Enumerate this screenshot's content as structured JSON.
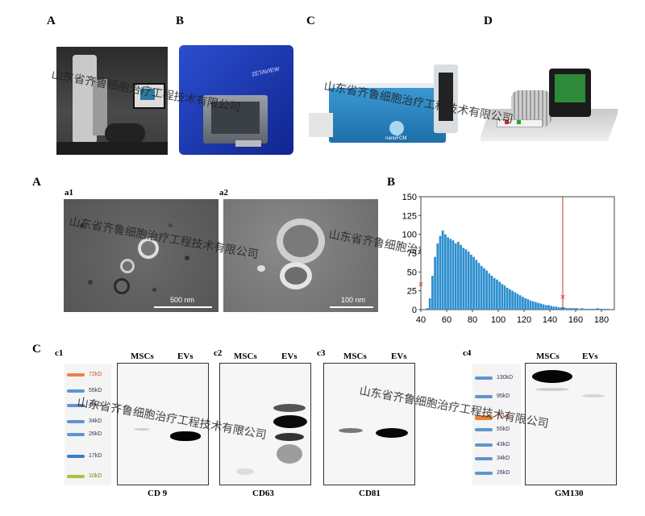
{
  "top_panels": {
    "A": {
      "label": "A"
    },
    "B": {
      "label": "B",
      "device_text": "ZETAVIEW"
    },
    "C": {
      "label": "C",
      "device_text": "nanoFCM"
    },
    "D": {
      "label": "D"
    }
  },
  "watermark": "山东省齐鲁细胞治疗工程技术有限公司",
  "em_section": {
    "label": "A",
    "a1": {
      "label": "a1",
      "scale": "500 nm"
    },
    "a2": {
      "label": "a2",
      "scale": "100 nm"
    }
  },
  "histogram": {
    "label": "B"
  },
  "chart_data": {
    "type": "bar",
    "title": "",
    "xlabel": "",
    "ylabel": "",
    "xlim": [
      40,
      190
    ],
    "ylim": [
      0,
      150
    ],
    "xticks": [
      "40",
      "60",
      "80",
      "100",
      "120",
      "140",
      "160",
      "180"
    ],
    "yticks": [
      "0",
      "25",
      "50",
      "75",
      "100",
      "125",
      "150"
    ],
    "markers": [
      {
        "x": 40,
        "y": 35
      },
      {
        "x": 150,
        "y": 18
      }
    ],
    "vline_x": 150,
    "x": [
      45,
      47,
      49,
      51,
      53,
      55,
      57,
      59,
      61,
      63,
      65,
      67,
      69,
      71,
      73,
      75,
      77,
      79,
      81,
      83,
      85,
      87,
      89,
      91,
      93,
      95,
      97,
      99,
      101,
      103,
      105,
      107,
      109,
      111,
      113,
      115,
      117,
      119,
      121,
      123,
      125,
      127,
      129,
      131,
      133,
      135,
      137,
      139,
      141,
      143,
      145,
      147,
      149,
      151,
      153,
      155,
      157,
      159,
      161,
      163,
      165,
      167,
      169,
      171,
      173,
      175,
      177,
      179,
      181,
      183,
      185
    ],
    "values": [
      2,
      15,
      45,
      70,
      88,
      98,
      105,
      100,
      96,
      94,
      92,
      88,
      90,
      86,
      82,
      80,
      77,
      73,
      70,
      66,
      62,
      58,
      55,
      52,
      48,
      45,
      42,
      40,
      37,
      34,
      32,
      29,
      27,
      25,
      23,
      21,
      19,
      17,
      15,
      14,
      12,
      11,
      10,
      9,
      8,
      7,
      6,
      6,
      5,
      4,
      4,
      3,
      3,
      3,
      2,
      2,
      2,
      2,
      2,
      1,
      2,
      1,
      1,
      1,
      1,
      1,
      2,
      1,
      1,
      1,
      1
    ]
  },
  "blots": {
    "label": "C",
    "col_mscs": "MSCs",
    "col_evs": "EVs",
    "c1": {
      "label": "c1",
      "name": "CD 9"
    },
    "c2": {
      "label": "c2",
      "name": "CD63"
    },
    "c3": {
      "label": "c3",
      "name": "CD81"
    },
    "c4": {
      "label": "c4",
      "name": "GM130"
    },
    "ladder1": [
      "72kD",
      "55kD",
      "40kD",
      "34kD",
      "26kD",
      "17kD",
      "10kD"
    ],
    "ladder2": [
      "130kD",
      "95kD",
      "72kD",
      "55kD",
      "43kD",
      "34kD",
      "26kD"
    ]
  }
}
